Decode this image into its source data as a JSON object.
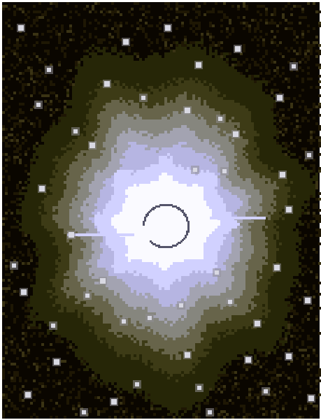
{
  "image": {
    "subject": "astronomical-nebula-field",
    "style": "pixelated",
    "palette": {
      "deep_space": "#0a0600",
      "noise_dark": "#1e1704",
      "noise_light": "#3a3314",
      "halo_outer": "#262607",
      "halo_olive": "#3d3b16",
      "halo_khaki": "#67644a",
      "halo_gray": "#86867e",
      "halo_silver": "#a3a3b1",
      "halo_lavender": "#b6b5e2",
      "core_lilac": "#d1d1ff",
      "core_white": "#fafaff",
      "ring_shadow": "#54546a",
      "star": "#d8d8e2",
      "star_glow": "#8f8e92"
    }
  }
}
